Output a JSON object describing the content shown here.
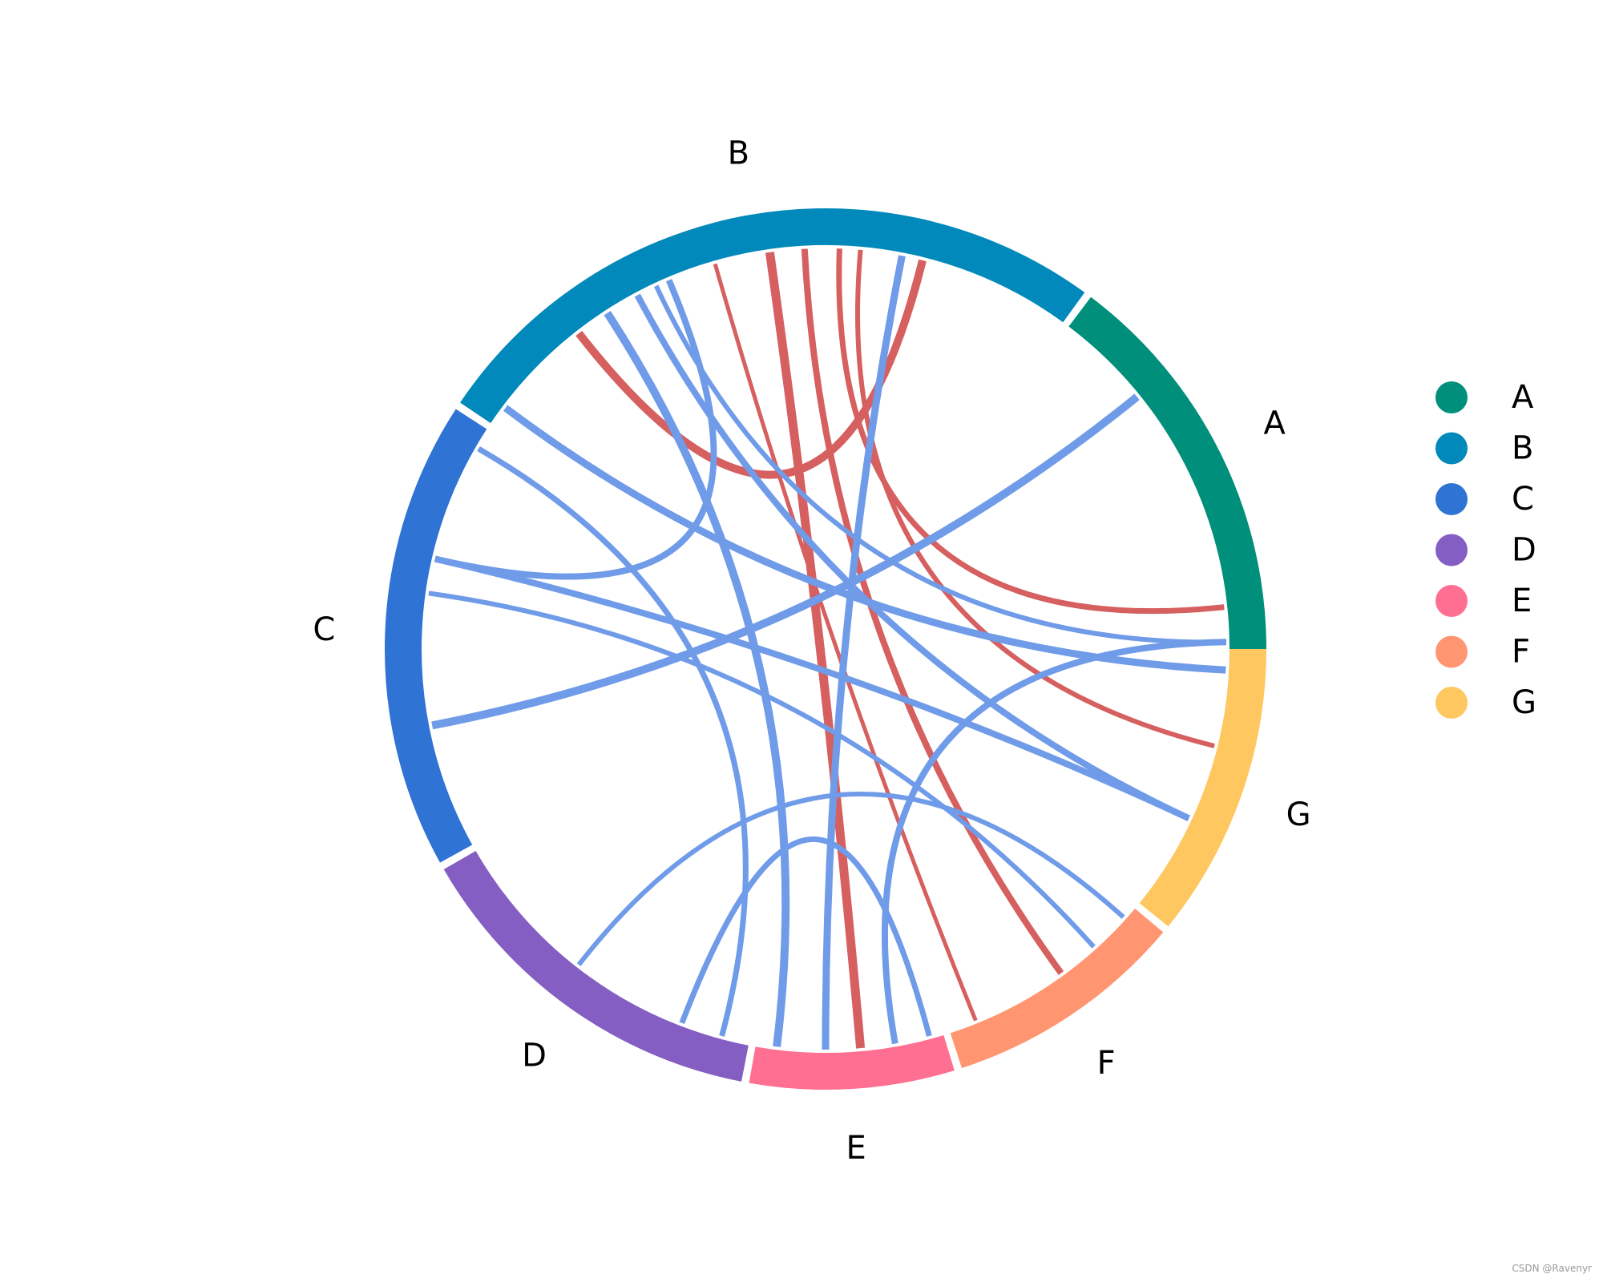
{
  "chart_data": {
    "type": "chord",
    "segments": [
      {
        "name": "A",
        "start": 0,
        "end": 53,
        "color": "#008F7A"
      },
      {
        "name": "B",
        "start": 54,
        "end": 146,
        "color": "#0089BA"
      },
      {
        "name": "C",
        "start": 147,
        "end": 209,
        "color": "#2F73D4"
      },
      {
        "name": "D",
        "start": 210,
        "end": 259,
        "color": "#845EC2"
      },
      {
        "name": "E",
        "start": 260,
        "end": 287,
        "color": "#FF6F91"
      },
      {
        "name": "F",
        "start": 288,
        "end": 320,
        "color": "#FF9671"
      },
      {
        "name": "G",
        "start": 321,
        "end": 360,
        "color": "#FFC75F"
      }
    ],
    "links": [
      {
        "from": 128,
        "to": 76,
        "color": "#D65F5F",
        "width": 10
      },
      {
        "from": 98,
        "to": 275,
        "color": "#D65F5F",
        "width": 11
      },
      {
        "from": 93,
        "to": 306,
        "color": "#D65F5F",
        "width": 8
      },
      {
        "from": 88,
        "to": 6,
        "color": "#D65F5F",
        "width": 7
      },
      {
        "from": 85,
        "to": 346,
        "color": "#D65F5F",
        "width": 6
      },
      {
        "from": 106,
        "to": 292,
        "color": "#D65F5F",
        "width": 5
      },
      {
        "from": 118,
        "to": 335,
        "color": "#6F9BE8",
        "width": 8
      },
      {
        "from": 123,
        "to": 263,
        "color": "#6F9BE8",
        "width": 10
      },
      {
        "from": 113,
        "to": 167,
        "color": "#6F9BE8",
        "width": 8
      },
      {
        "from": 79,
        "to": 270,
        "color": "#6F9BE8",
        "width": 9
      },
      {
        "from": 115,
        "to": 1,
        "color": "#6F9BE8",
        "width": 6
      },
      {
        "from": 143,
        "to": 357,
        "color": "#6F9BE8",
        "width": 9
      },
      {
        "from": 167,
        "to": 335,
        "color": "#6F9BE8",
        "width": 8
      },
      {
        "from": 150,
        "to": 255,
        "color": "#6F9BE8",
        "width": 7
      },
      {
        "from": 191,
        "to": 39,
        "color": "#6F9BE8",
        "width": 10
      },
      {
        "from": 172,
        "to": 312,
        "color": "#6F9BE8",
        "width": 6
      },
      {
        "from": 280,
        "to": 1,
        "color": "#6F9BE8",
        "width": 8
      },
      {
        "from": 285,
        "to": 249,
        "color": "#6F9BE8",
        "width": 7
      },
      {
        "from": 318,
        "to": 232,
        "color": "#6F9BE8",
        "width": 6
      }
    ],
    "legend": {
      "position": "right",
      "entries": [
        "A",
        "B",
        "C",
        "D",
        "E",
        "F",
        "G"
      ]
    }
  },
  "watermark": "CSDN @Ravenyr"
}
